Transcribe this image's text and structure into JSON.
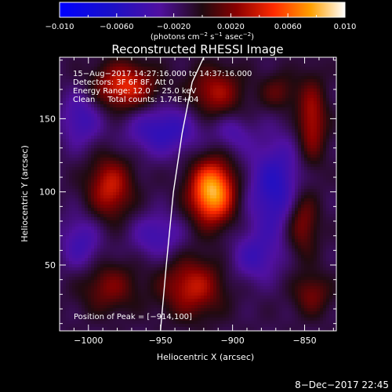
{
  "chart_data": {
    "type": "heatmap",
    "title": "Reconstructed RHESSI Image",
    "xlabel": "Heliocentric X (arcsec)",
    "ylabel": "Heliocentric Y (arcsec)",
    "xlim": [
      -1020,
      -828
    ],
    "ylim": [
      5,
      192
    ],
    "x_ticks": [
      -1000,
      -950,
      -900,
      -850
    ],
    "x_tick_labels": [
      "−1000",
      "−950",
      "−900",
      "−850"
    ],
    "y_ticks": [
      50,
      100,
      150
    ],
    "y_tick_labels": [
      "50",
      "100",
      "150"
    ],
    "colorbar": {
      "range": [
        -0.01,
        0.01
      ],
      "ticks": [
        -0.01,
        -0.006,
        -0.002,
        0.002,
        0.006,
        0.01
      ],
      "tick_labels": [
        "−0.010",
        "−0.0060",
        "−0.0020",
        "0.0020",
        "0.0060",
        "0.010"
      ],
      "unit_main": "(photons cm",
      "unit_exp1": "−2",
      "unit_mid": " s",
      "unit_exp2": "−1",
      "unit_end": " asec",
      "unit_exp3": "−2",
      "unit_close": ")"
    },
    "annotations": [
      "15−Aug−2017 14:27:16.000 to 14:37:16.000",
      "Detectors: 3F 6F 8F, Att 0",
      "Energy Range: 12.0 − 25.0 keV",
      "Clean     Total counts: 1.74E+04"
    ],
    "peak_label": "Position of Peak = [−914,100]",
    "peak": {
      "x": -914,
      "y": 100
    },
    "blobs": [
      {
        "x": -914,
        "y": 100,
        "sx": 11,
        "sy": 15,
        "a": 0.0095
      },
      {
        "x": -985,
        "y": 103,
        "sx": 11,
        "sy": 15,
        "a": 0.005
      },
      {
        "x": -975,
        "y": 172,
        "sx": 15,
        "sy": 11,
        "a": 0.0058
      },
      {
        "x": -912,
        "y": 168,
        "sx": 13,
        "sy": 12,
        "a": 0.0042
      },
      {
        "x": -928,
        "y": 35,
        "sx": 15,
        "sy": 14,
        "a": 0.0048
      },
      {
        "x": -986,
        "y": 35,
        "sx": 14,
        "sy": 12,
        "a": 0.0032
      },
      {
        "x": -845,
        "y": 148,
        "sx": 7,
        "sy": 20,
        "a": 0.0045
      },
      {
        "x": -852,
        "y": 80,
        "sx": 8,
        "sy": 16,
        "a": 0.0042
      },
      {
        "x": -845,
        "y": 30,
        "sx": 9,
        "sy": 10,
        "a": 0.003
      },
      {
        "x": -868,
        "y": 168,
        "sx": 9,
        "sy": 9,
        "a": 0.0025
      },
      {
        "x": -870,
        "y": 102,
        "sx": 14,
        "sy": 24,
        "a": -0.0045
      },
      {
        "x": -948,
        "y": 142,
        "sx": 18,
        "sy": 12,
        "a": -0.004
      },
      {
        "x": -1005,
        "y": 150,
        "sx": 10,
        "sy": 14,
        "a": -0.0032
      },
      {
        "x": -1005,
        "y": 65,
        "sx": 10,
        "sy": 14,
        "a": -0.003
      },
      {
        "x": -952,
        "y": 70,
        "sx": 13,
        "sy": 11,
        "a": -0.003
      },
      {
        "x": -885,
        "y": 55,
        "sx": 12,
        "sy": 12,
        "a": -0.0028
      },
      {
        "x": -900,
        "y": 140,
        "sx": 9,
        "sy": 9,
        "a": -0.0022
      }
    ],
    "limb_x": [
      -950,
      -946,
      -941,
      -935,
      -928,
      -920
    ],
    "limb_y": [
      5,
      50,
      100,
      140,
      175,
      192
    ]
  },
  "timestamp": "8−Dec−2017 22:45"
}
